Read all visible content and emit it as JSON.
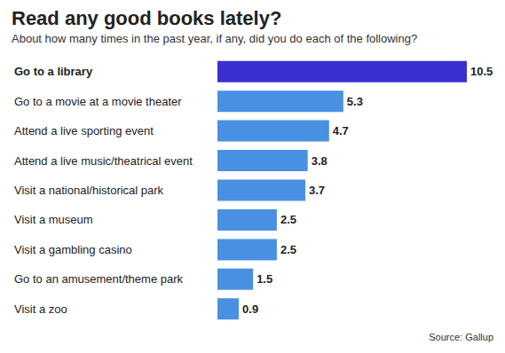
{
  "chart_data": {
    "type": "bar",
    "title": "Read any good books lately?",
    "subtitle": "About how many times in the past year, if any, did you do each of the following?",
    "source": "Source: Gallup",
    "orientation": "horizontal",
    "categories": [
      "Go to a library",
      "Go to a movie at a movie theater",
      "Attend a live sporting event",
      "Attend a live music/theatrical event",
      "Visit a national/historical park",
      "Visit a museum",
      "Visit a gambling casino",
      "Go to an amusement/theme park",
      "Visit a zoo"
    ],
    "values": [
      10.5,
      5.3,
      4.7,
      3.8,
      3.7,
      2.5,
      2.5,
      1.5,
      0.9
    ],
    "colors": [
      "#3a2fd0",
      "#4a90e2",
      "#4a90e2",
      "#4a90e2",
      "#4a90e2",
      "#4a90e2",
      "#4a90e2",
      "#4a90e2",
      "#4a90e2"
    ],
    "xlim": [
      0,
      10.5
    ],
    "data_labels": true,
    "tick_labels": "y",
    "grid": false
  }
}
